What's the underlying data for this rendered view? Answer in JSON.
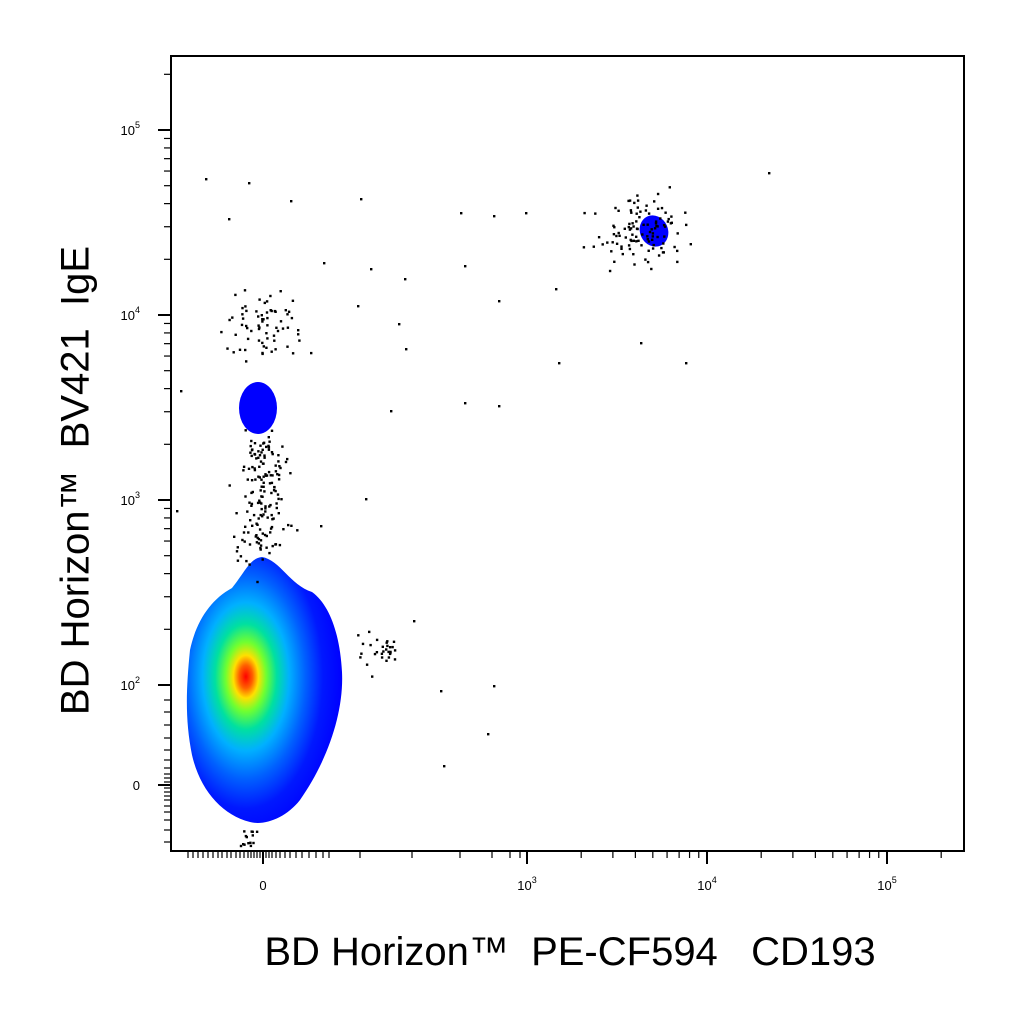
{
  "chart_data": {
    "type": "scatter",
    "style": "flow-cytometry pseudocolor density plot",
    "xlabel": "BD Horizon™  PE-CF594   CD193",
    "ylabel": "BD Horizon™  BV421  IgE",
    "x_scale": "biexponential",
    "y_scale": "biexponential",
    "x_ticks": [
      {
        "value": 0,
        "label": "0"
      },
      {
        "value": 1000,
        "label": "10",
        "exp": "3"
      },
      {
        "value": 10000,
        "label": "10",
        "exp": "4"
      },
      {
        "value": 100000,
        "label": "10",
        "exp": "5"
      }
    ],
    "y_ticks": [
      {
        "value": 0,
        "label": "0"
      },
      {
        "value": 100,
        "label": "10",
        "exp": "2"
      },
      {
        "value": 1000,
        "label": "10",
        "exp": "3"
      },
      {
        "value": 10000,
        "label": "10",
        "exp": "4"
      },
      {
        "value": 100000,
        "label": "10",
        "exp": "5"
      }
    ],
    "populations": [
      {
        "x": 0,
        "y": 100,
        "density": "high"
      },
      {
        "x": 0,
        "y": 3000,
        "density": "low"
      },
      {
        "x": 5000,
        "y": 30000,
        "density": "low"
      }
    ],
    "grid": false,
    "colors": {
      "low": "#0000ff",
      "mid": "#00d0ff",
      "midhigh": "#00ff60",
      "high": "#ffff00",
      "peak": "#ff0000",
      "events": "#000000"
    }
  }
}
